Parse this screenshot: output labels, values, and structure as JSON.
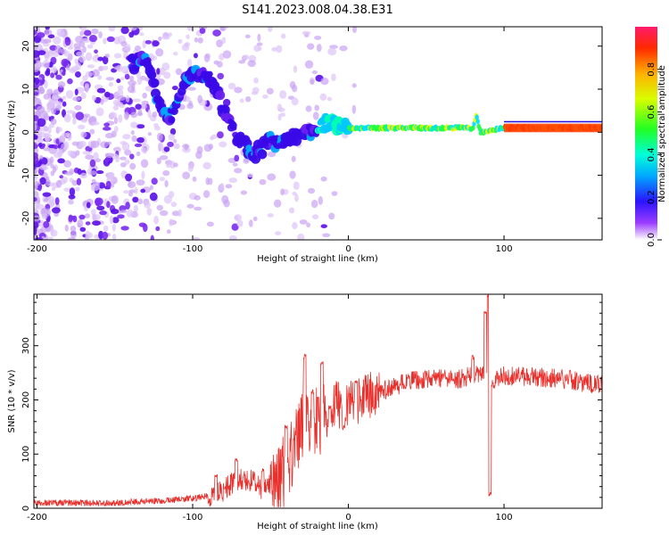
{
  "title": "S141.2023.008.04.38.E31",
  "chart_data": [
    {
      "type": "heatmap",
      "xlabel": "Height of straight line (km)",
      "ylabel": "Frequency (Hz)",
      "xlim": [
        -202,
        163
      ],
      "ylim": [
        -25,
        24.5
      ],
      "xticks": [
        -200,
        -100,
        0,
        100
      ],
      "yticks": [
        20,
        10,
        0,
        -10,
        -20
      ],
      "colorbar": {
        "label": "Normalized spectral amplitude",
        "range": [
          0,
          1
        ],
        "ticks": [
          "0.0",
          "0.2",
          "0.4",
          "0.6",
          "0.8"
        ],
        "tick_values": [
          0,
          0.2,
          0.4,
          0.6,
          0.8
        ]
      },
      "ridge": {
        "description_points": [
          [
            -137,
            16
          ],
          [
            -130,
            17
          ],
          [
            -122,
            7
          ],
          [
            -115,
            3
          ],
          [
            -105,
            12
          ],
          [
            -95,
            14
          ],
          [
            -88,
            12
          ],
          [
            -80,
            5
          ],
          [
            -70,
            -2
          ],
          [
            -60,
            -5
          ],
          [
            -50,
            -2
          ],
          [
            -42,
            -3
          ],
          [
            -35,
            -1
          ],
          [
            -25,
            0
          ],
          [
            -15,
            2
          ],
          [
            -10,
            2
          ],
          [
            0,
            1
          ],
          [
            20,
            1
          ],
          [
            40,
            1
          ],
          [
            60,
            1
          ],
          [
            80,
            1
          ],
          [
            82,
            4
          ],
          [
            85,
            0
          ],
          [
            100,
            1
          ],
          [
            120,
            1
          ],
          [
            163,
            1
          ]
        ]
      }
    },
    {
      "type": "line",
      "color": "#e8302c",
      "xlabel": "Height of straight line (km)",
      "ylabel": "SNR (10 * v/v)",
      "xlim": [
        -202,
        163
      ],
      "ylim": [
        0,
        395
      ],
      "xticks": [
        -200,
        -100,
        0,
        100
      ],
      "yticks": [
        0,
        100,
        200,
        300
      ],
      "envelope_points": [
        [
          -202,
          10
        ],
        [
          -150,
          10
        ],
        [
          -120,
          14
        ],
        [
          -100,
          18
        ],
        [
          -85,
          25
        ],
        [
          -75,
          45
        ],
        [
          -65,
          55
        ],
        [
          -55,
          35
        ],
        [
          -40,
          70
        ],
        [
          -35,
          120
        ],
        [
          -30,
          150
        ],
        [
          -25,
          165
        ],
        [
          -20,
          155
        ],
        [
          -15,
          180
        ],
        [
          -10,
          185
        ],
        [
          -5,
          175
        ],
        [
          0,
          190
        ],
        [
          10,
          200
        ],
        [
          20,
          215
        ],
        [
          30,
          225
        ],
        [
          40,
          235
        ],
        [
          50,
          240
        ],
        [
          60,
          240
        ],
        [
          70,
          238
        ],
        [
          80,
          245
        ],
        [
          85,
          250
        ],
        [
          88,
          240
        ],
        [
          92,
          230
        ],
        [
          100,
          245
        ],
        [
          120,
          242
        ],
        [
          140,
          238
        ],
        [
          163,
          226
        ]
      ],
      "spikes": [
        [
          -85,
          60
        ],
        [
          -72,
          90
        ],
        [
          -55,
          70
        ],
        [
          -40,
          150
        ],
        [
          -28,
          280
        ],
        [
          -23,
          215
        ],
        [
          -17,
          270
        ],
        [
          -12,
          185
        ],
        [
          -3,
          150
        ],
        [
          5,
          235
        ],
        [
          80,
          280
        ],
        [
          88,
          360
        ],
        [
          90,
          395
        ],
        [
          91,
          25
        ]
      ]
    }
  ]
}
